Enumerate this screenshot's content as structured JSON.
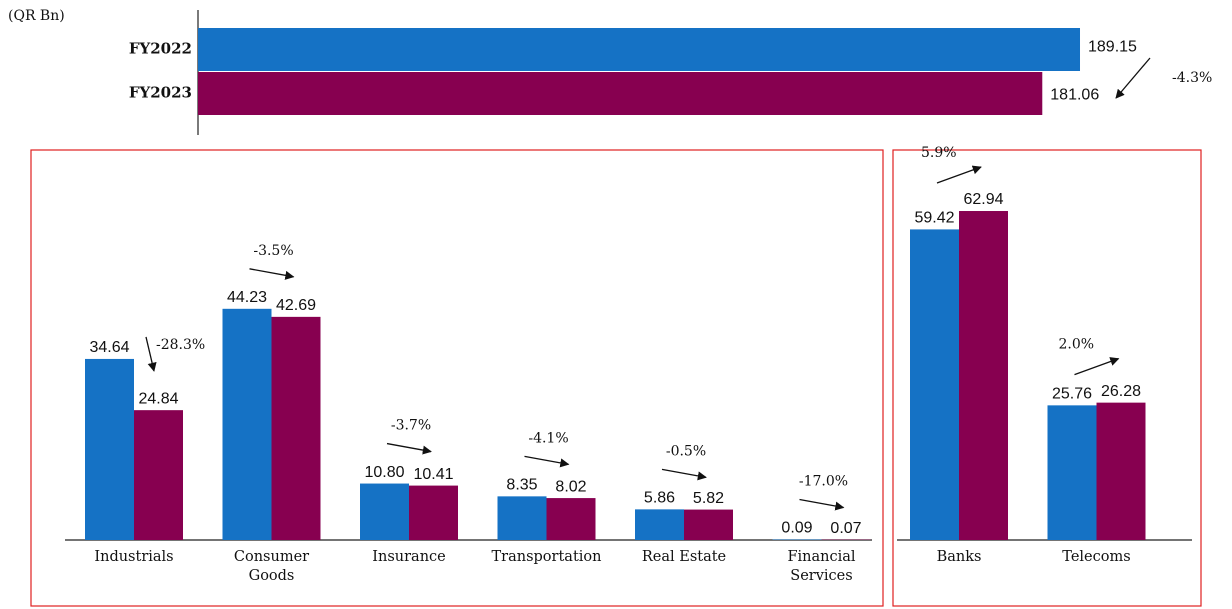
{
  "chart_data": [
    {
      "type": "hbar",
      "unit_label": "(QR Bn)",
      "categories": [
        "FY2022",
        "FY2023"
      ],
      "values": [
        189.15,
        181.06
      ],
      "colors": [
        "#1572c5",
        "#870050"
      ],
      "change_label": "-4.3%"
    },
    {
      "type": "grouped_bar",
      "categories": [
        "Industrials",
        "Consumer Goods",
        "Insurance",
        "Transportation",
        "Real Estate",
        "Financial Services",
        "Banks",
        "Telecoms"
      ],
      "series": [
        {
          "color": "#1572c5",
          "values": [
            34.64,
            44.23,
            10.8,
            8.35,
            5.86,
            0.09,
            59.42,
            25.76
          ],
          "value_labels": [
            "34.64",
            "44.23",
            "10.80",
            "8.35",
            "5.86",
            "0.09",
            "59.42",
            "25.76"
          ]
        },
        {
          "color": "#870050",
          "values": [
            24.84,
            42.69,
            10.41,
            8.02,
            5.82,
            0.07,
            62.94,
            26.28
          ],
          "value_labels": [
            "24.84",
            "42.69",
            "10.41",
            "8.02",
            "5.82",
            "0.07",
            "62.94",
            "26.28"
          ]
        }
      ],
      "change_labels": [
        "-28.3%",
        "-3.5%",
        "-3.7%",
        "-4.1%",
        "-0.5%",
        "-17.0%",
        "5.9%",
        "2.0%"
      ]
    }
  ]
}
